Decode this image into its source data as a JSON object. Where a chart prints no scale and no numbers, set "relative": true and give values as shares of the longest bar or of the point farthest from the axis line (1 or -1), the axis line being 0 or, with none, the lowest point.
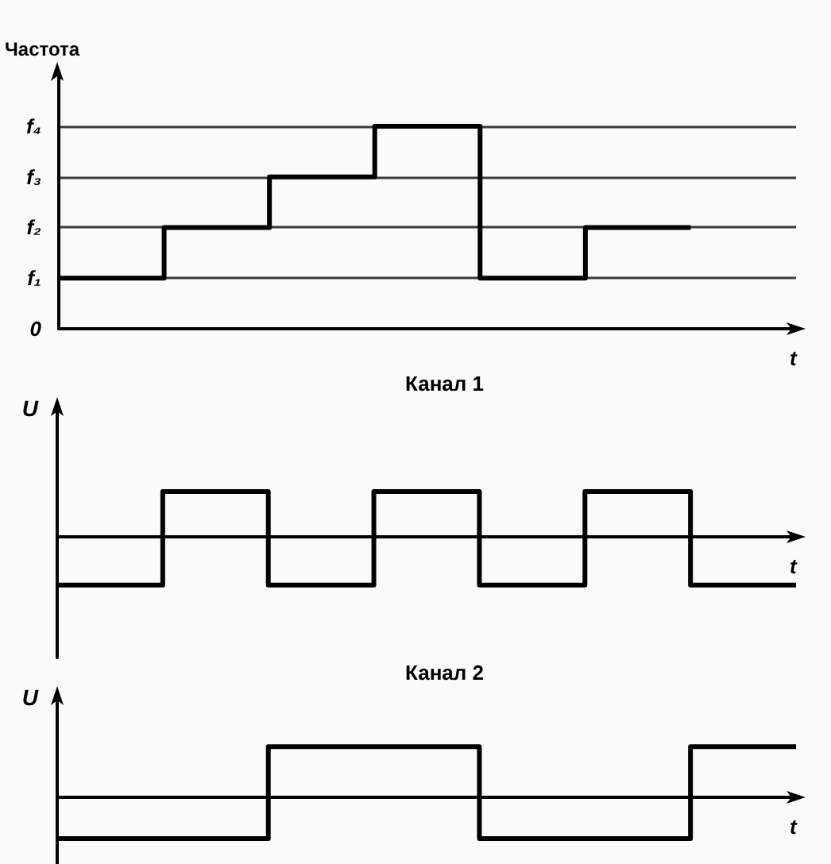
{
  "chart_data": [
    {
      "type": "step",
      "ylabel": "Частота",
      "xlabel": "t",
      "categories": [
        null,
        null,
        null,
        null,
        null,
        null,
        null
      ],
      "values": [
        0.25,
        0.5,
        0.75,
        1,
        0.25,
        0.5,
        0.5
      ],
      "color": "#000000",
      "relative": true,
      "grid": "y",
      "tick_labels": false,
      "marker": "none",
      "line_style": "solid",
      "annotations": [
        "0",
        "f₁",
        "f₂",
        "f₃",
        "f₄"
      ]
    },
    {
      "type": "step",
      "title": "Канал 1",
      "ylabel": "U",
      "xlabel": "t",
      "categories": [
        null,
        null,
        null,
        null,
        null,
        null,
        null,
        null
      ],
      "values": [
        -1,
        0.94,
        -1,
        0.94,
        -1,
        0.94,
        -1,
        -1
      ],
      "color": "#000000",
      "relative": true,
      "tick_labels": false,
      "marker": "none",
      "line_style": "solid"
    },
    {
      "type": "step",
      "title": "Канал 2",
      "ylabel": "U",
      "xlabel": "t",
      "categories": [
        null,
        null,
        null,
        null,
        null,
        null,
        null,
        null
      ],
      "values": [
        -0.8,
        -0.8,
        1,
        1,
        -0.8,
        -0.8,
        1,
        1
      ],
      "color": "#000000",
      "relative": true,
      "tick_labels": false,
      "marker": "none",
      "line_style": "solid"
    }
  ]
}
